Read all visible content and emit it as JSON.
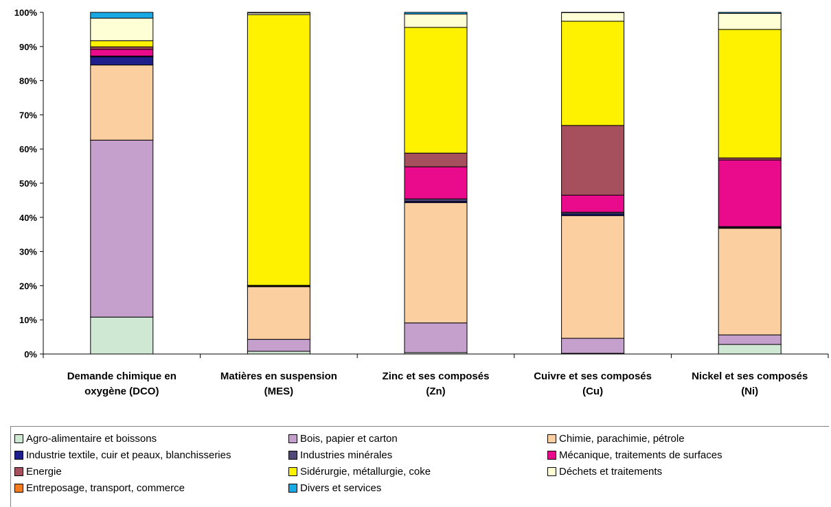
{
  "chart_data": {
    "type": "bar",
    "stacked": true,
    "normalized": true,
    "categories": [
      [
        "Demande chimique en",
        "oxygène (DCO)"
      ],
      [
        "Matières en suspension",
        "(MES)"
      ],
      [
        "Zinc et ses composés",
        "(Zn)"
      ],
      [
        "Cuivre et ses composés",
        "(Cu)"
      ],
      [
        "Nickel et ses composés",
        "(Ni)"
      ]
    ],
    "y_ticks": [
      "0%",
      "10%",
      "20%",
      "30%",
      "40%",
      "50%",
      "60%",
      "70%",
      "80%",
      "90%",
      "100%"
    ],
    "ylim": [
      0,
      100
    ],
    "grid": false,
    "legend_position": "bottom",
    "series": [
      {
        "name": "Agro-alimentaire et boissons",
        "color": "#cfe8d4",
        "values": [
          10.8,
          0.8,
          0.4,
          0.2,
          2.8
        ]
      },
      {
        "name": "Bois, papier et carton",
        "color": "#c6a0cc",
        "values": [
          51.8,
          3.5,
          8.7,
          4.4,
          2.8
        ]
      },
      {
        "name": "Chimie, parachimie, pétrole",
        "color": "#fccfa0",
        "values": [
          22.0,
          15.4,
          35.2,
          35.9,
          31.2
        ]
      },
      {
        "name": "Industrie textile, cuir et peaux, blanchisseries",
        "color": "#1f1f8c",
        "values": [
          2.4,
          0.1,
          0.4,
          0.5,
          0.2
        ]
      },
      {
        "name": "Industries minérales",
        "color": "#4f4878",
        "values": [
          0.2,
          0.2,
          0.7,
          0.5,
          0.3
        ]
      },
      {
        "name": "Mécanique, traitements de surfaces",
        "color": "#ea0a8c",
        "values": [
          2.0,
          0.1,
          9.4,
          5.0,
          19.5
        ]
      },
      {
        "name": "Energie",
        "color": "#a6505d",
        "values": [
          0.7,
          0.0,
          4.0,
          20.4,
          0.6
        ]
      },
      {
        "name": "Sidérurgie, métallurgie, coke",
        "color": "#fff200",
        "values": [
          1.8,
          79.2,
          36.8,
          30.5,
          37.6
        ]
      },
      {
        "name": "Déchets et traitements",
        "color": "#ffffd6",
        "values": [
          6.6,
          0.5,
          3.9,
          2.5,
          4.7
        ]
      },
      {
        "name": "Entreposage, transport, commerce",
        "color": "#f47c20",
        "values": [
          0.0,
          0.0,
          0.0,
          0.0,
          0.0
        ]
      },
      {
        "name": "Divers et services",
        "color": "#19a9e5",
        "values": [
          1.7,
          0.2,
          0.5,
          0.1,
          0.3
        ]
      }
    ]
  }
}
